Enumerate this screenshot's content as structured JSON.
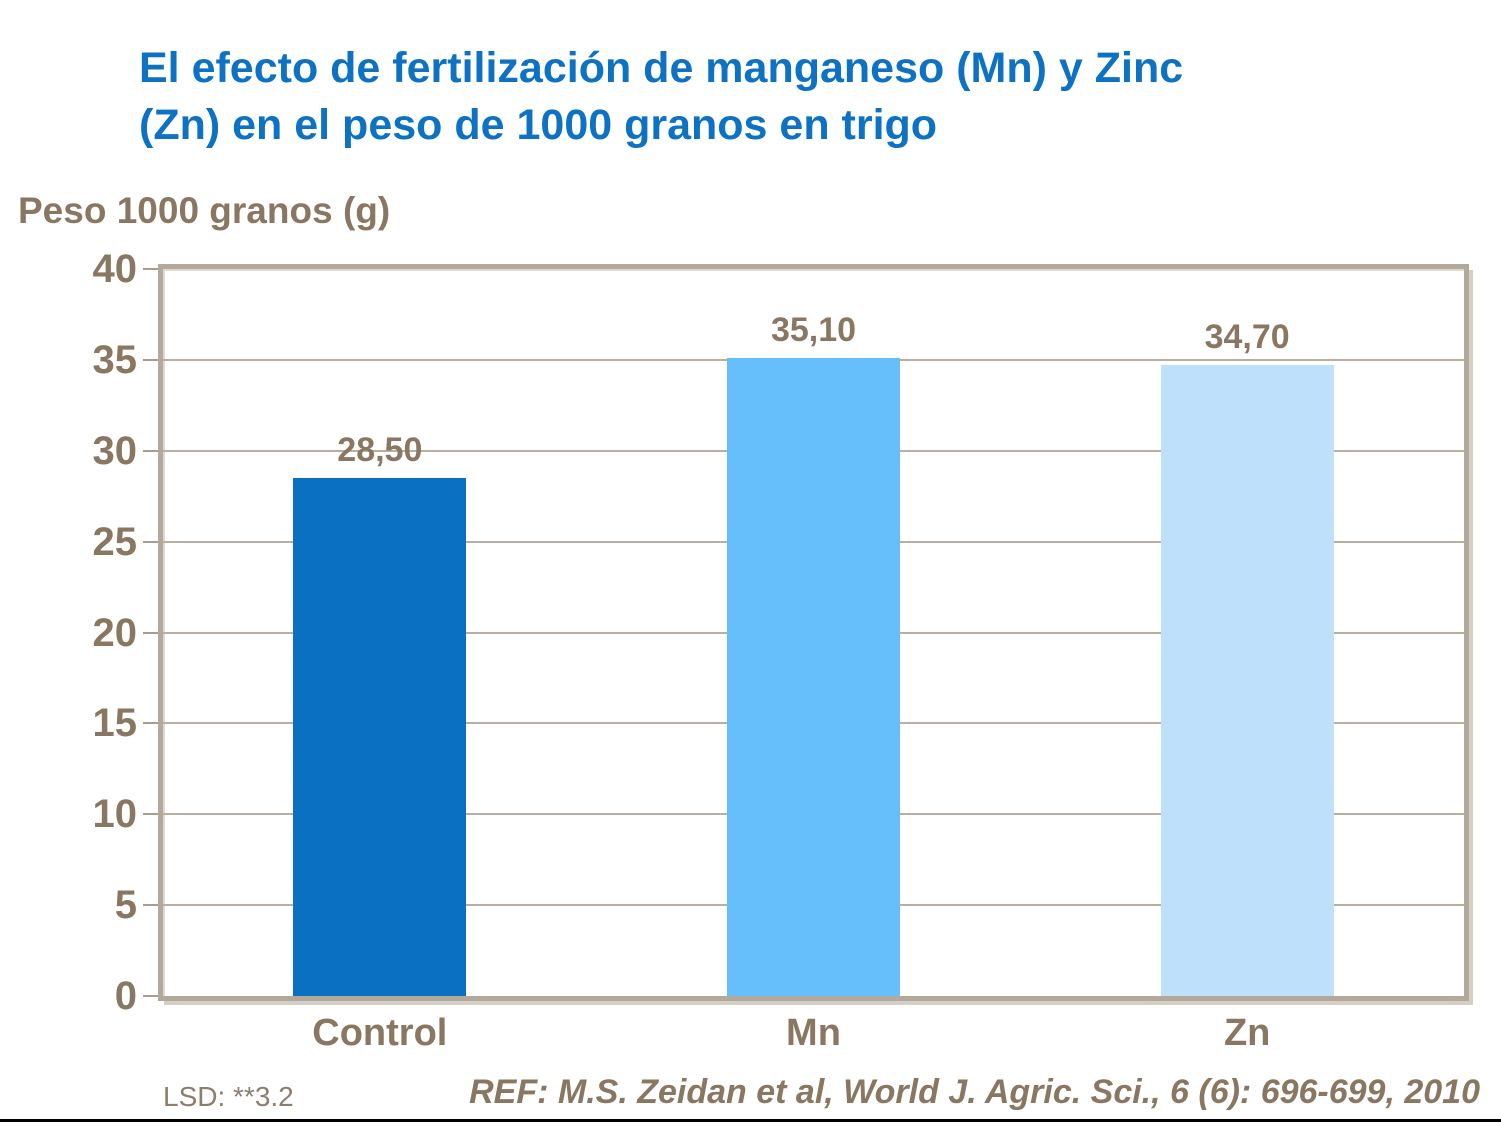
{
  "header": {
    "title_line1": "El efecto de fertilización de manganeso (Mn) y Zinc",
    "title_line2": "(Zn) en el peso de 1000 granos en trigo"
  },
  "chart_data": {
    "type": "bar",
    "title": "El efecto de fertilización de manganeso (Mn) y Zinc (Zn) en el peso de 1000 granos en trigo",
    "categories": [
      "Control",
      "Mn",
      "Zn"
    ],
    "values": [
      28.5,
      35.1,
      34.7
    ],
    "value_labels": [
      "28,50",
      "35,10",
      "34,70"
    ],
    "ylabel": "Peso 1000 granos (g)",
    "xlabel": "",
    "ylim": [
      0,
      40
    ],
    "yticks": [
      0,
      5,
      10,
      15,
      20,
      25,
      30,
      35,
      40
    ],
    "grid": "horizontal gridlines every 5 units",
    "legend_position": "none",
    "bar_colors": [
      "#0A71C2",
      "#66BEFB",
      "#BEE0FA"
    ]
  },
  "footer": {
    "lsd": "LSD: **3.2",
    "reference": "REF: M.S. Zeidan et al, World J. Agric. Sci., 6 (6): 696-699, 2010"
  },
  "colors": {
    "title_blue": "#0D72C3",
    "text_brown": "#8A7761",
    "grid_tan": "#B9AF9F",
    "frame_tan": "#B2A89B",
    "bottom_rule_black": "#000000"
  }
}
